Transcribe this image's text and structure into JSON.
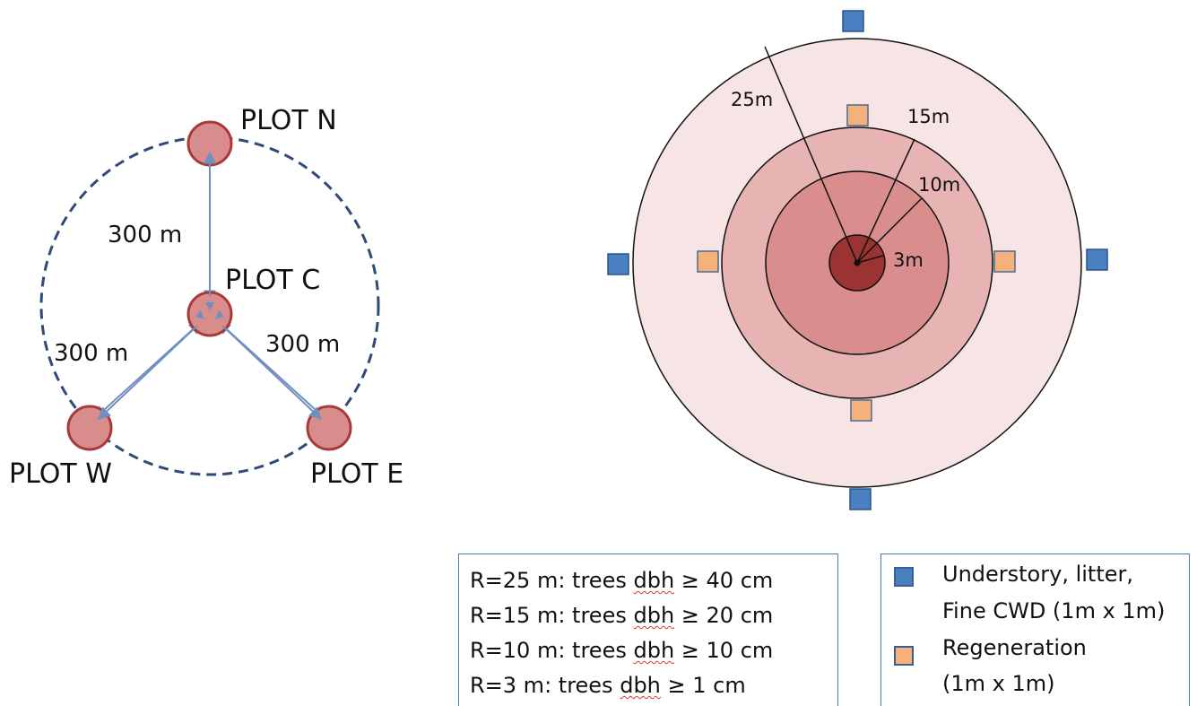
{
  "cluster": {
    "plots": {
      "north": "PLOT N",
      "center": "PLOT C",
      "west": "PLOT W",
      "east": "PLOT E"
    },
    "distances": {
      "north": "300 m",
      "west": "300 m",
      "east": "300 m"
    },
    "colors": {
      "plot_fill": "#d98c8c",
      "plot_stroke": "#a83a3a",
      "arrow": "#6f8fc0",
      "dashed_circle": "#2f4a78"
    }
  },
  "plot_design": {
    "radii": {
      "r25": "25m",
      "r15": "15m",
      "r10": "10m",
      "r3": "3m"
    },
    "colors": {
      "ring_25": "#f7e4e4",
      "ring_15": "#e7b3b3",
      "ring_10": "#d98d8d",
      "core_3": "#9c3333",
      "understory_square": "#4a7fc1",
      "regeneration_square": "#f4b27a"
    }
  },
  "radius_legend": [
    {
      "prefix": "R=25 m: trees ",
      "dbh": "dbh",
      "suffix": " ≥ 40 cm"
    },
    {
      "prefix": "R=15 m: trees ",
      "dbh": "dbh",
      "suffix": " ≥ 20 cm"
    },
    {
      "prefix": "R=10 m: trees ",
      "dbh": "dbh",
      "suffix": " ≥ 10 cm"
    },
    {
      "prefix": "R=3 m: trees ",
      "dbh": "dbh",
      "suffix": " ≥ 1 cm"
    }
  ],
  "quadrat_legend": {
    "understory": {
      "line1": "Understory, litter,",
      "line2": "Fine CWD (1m x 1m)",
      "color": "#4a7fc1"
    },
    "regeneration": {
      "line1": "Regeneration",
      "line2": "(1m x 1m)",
      "color": "#f4b27a"
    }
  }
}
